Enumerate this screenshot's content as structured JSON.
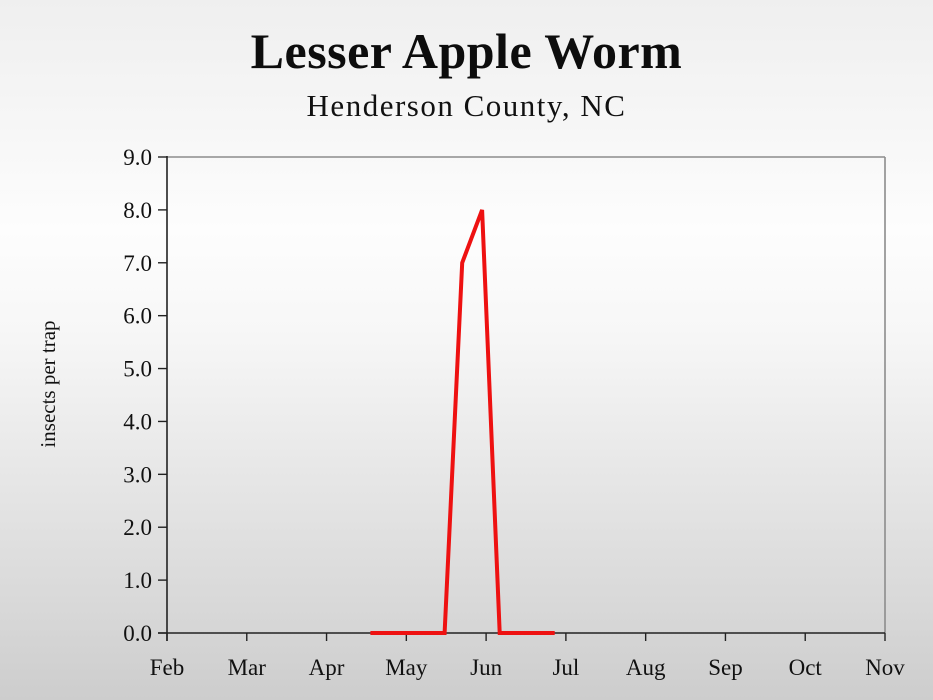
{
  "header": {
    "title": "Lesser Apple Worm",
    "subtitle": "Henderson County, NC"
  },
  "colors": {
    "series": "#ee1111",
    "axis": "#222222",
    "frame": "#8c8c8c"
  },
  "chart_data": {
    "type": "line",
    "title": "Lesser Apple Worm",
    "subtitle": "Henderson County, NC",
    "xlabel": "",
    "ylabel": "insects per trap",
    "ylim": [
      0,
      9
    ],
    "yticks": [
      "0.0",
      "1.0",
      "2.0",
      "3.0",
      "4.0",
      "5.0",
      "6.0",
      "7.0",
      "8.0",
      "9.0"
    ],
    "xticks": [
      "Feb",
      "Mar",
      "Apr",
      "May",
      "Jun",
      "Jul",
      "Aug",
      "Sep",
      "Oct",
      "Nov"
    ],
    "grid": false,
    "legend": null,
    "series": [
      {
        "name": "Lesser Apple Worm",
        "color": "#ee1111",
        "points": [
          {
            "x": "Apr 19",
            "month_pos": 2.55,
            "y": 0.0
          },
          {
            "x": "May 15",
            "month_pos": 3.48,
            "y": 0.0
          },
          {
            "x": "May 22",
            "month_pos": 3.7,
            "y": 7.0
          },
          {
            "x": "May 29",
            "month_pos": 3.95,
            "y": 8.0
          },
          {
            "x": "Jun 5",
            "month_pos": 4.17,
            "y": 0.0
          },
          {
            "x": "Jun 26",
            "month_pos": 4.86,
            "y": 0.0
          }
        ]
      }
    ]
  }
}
